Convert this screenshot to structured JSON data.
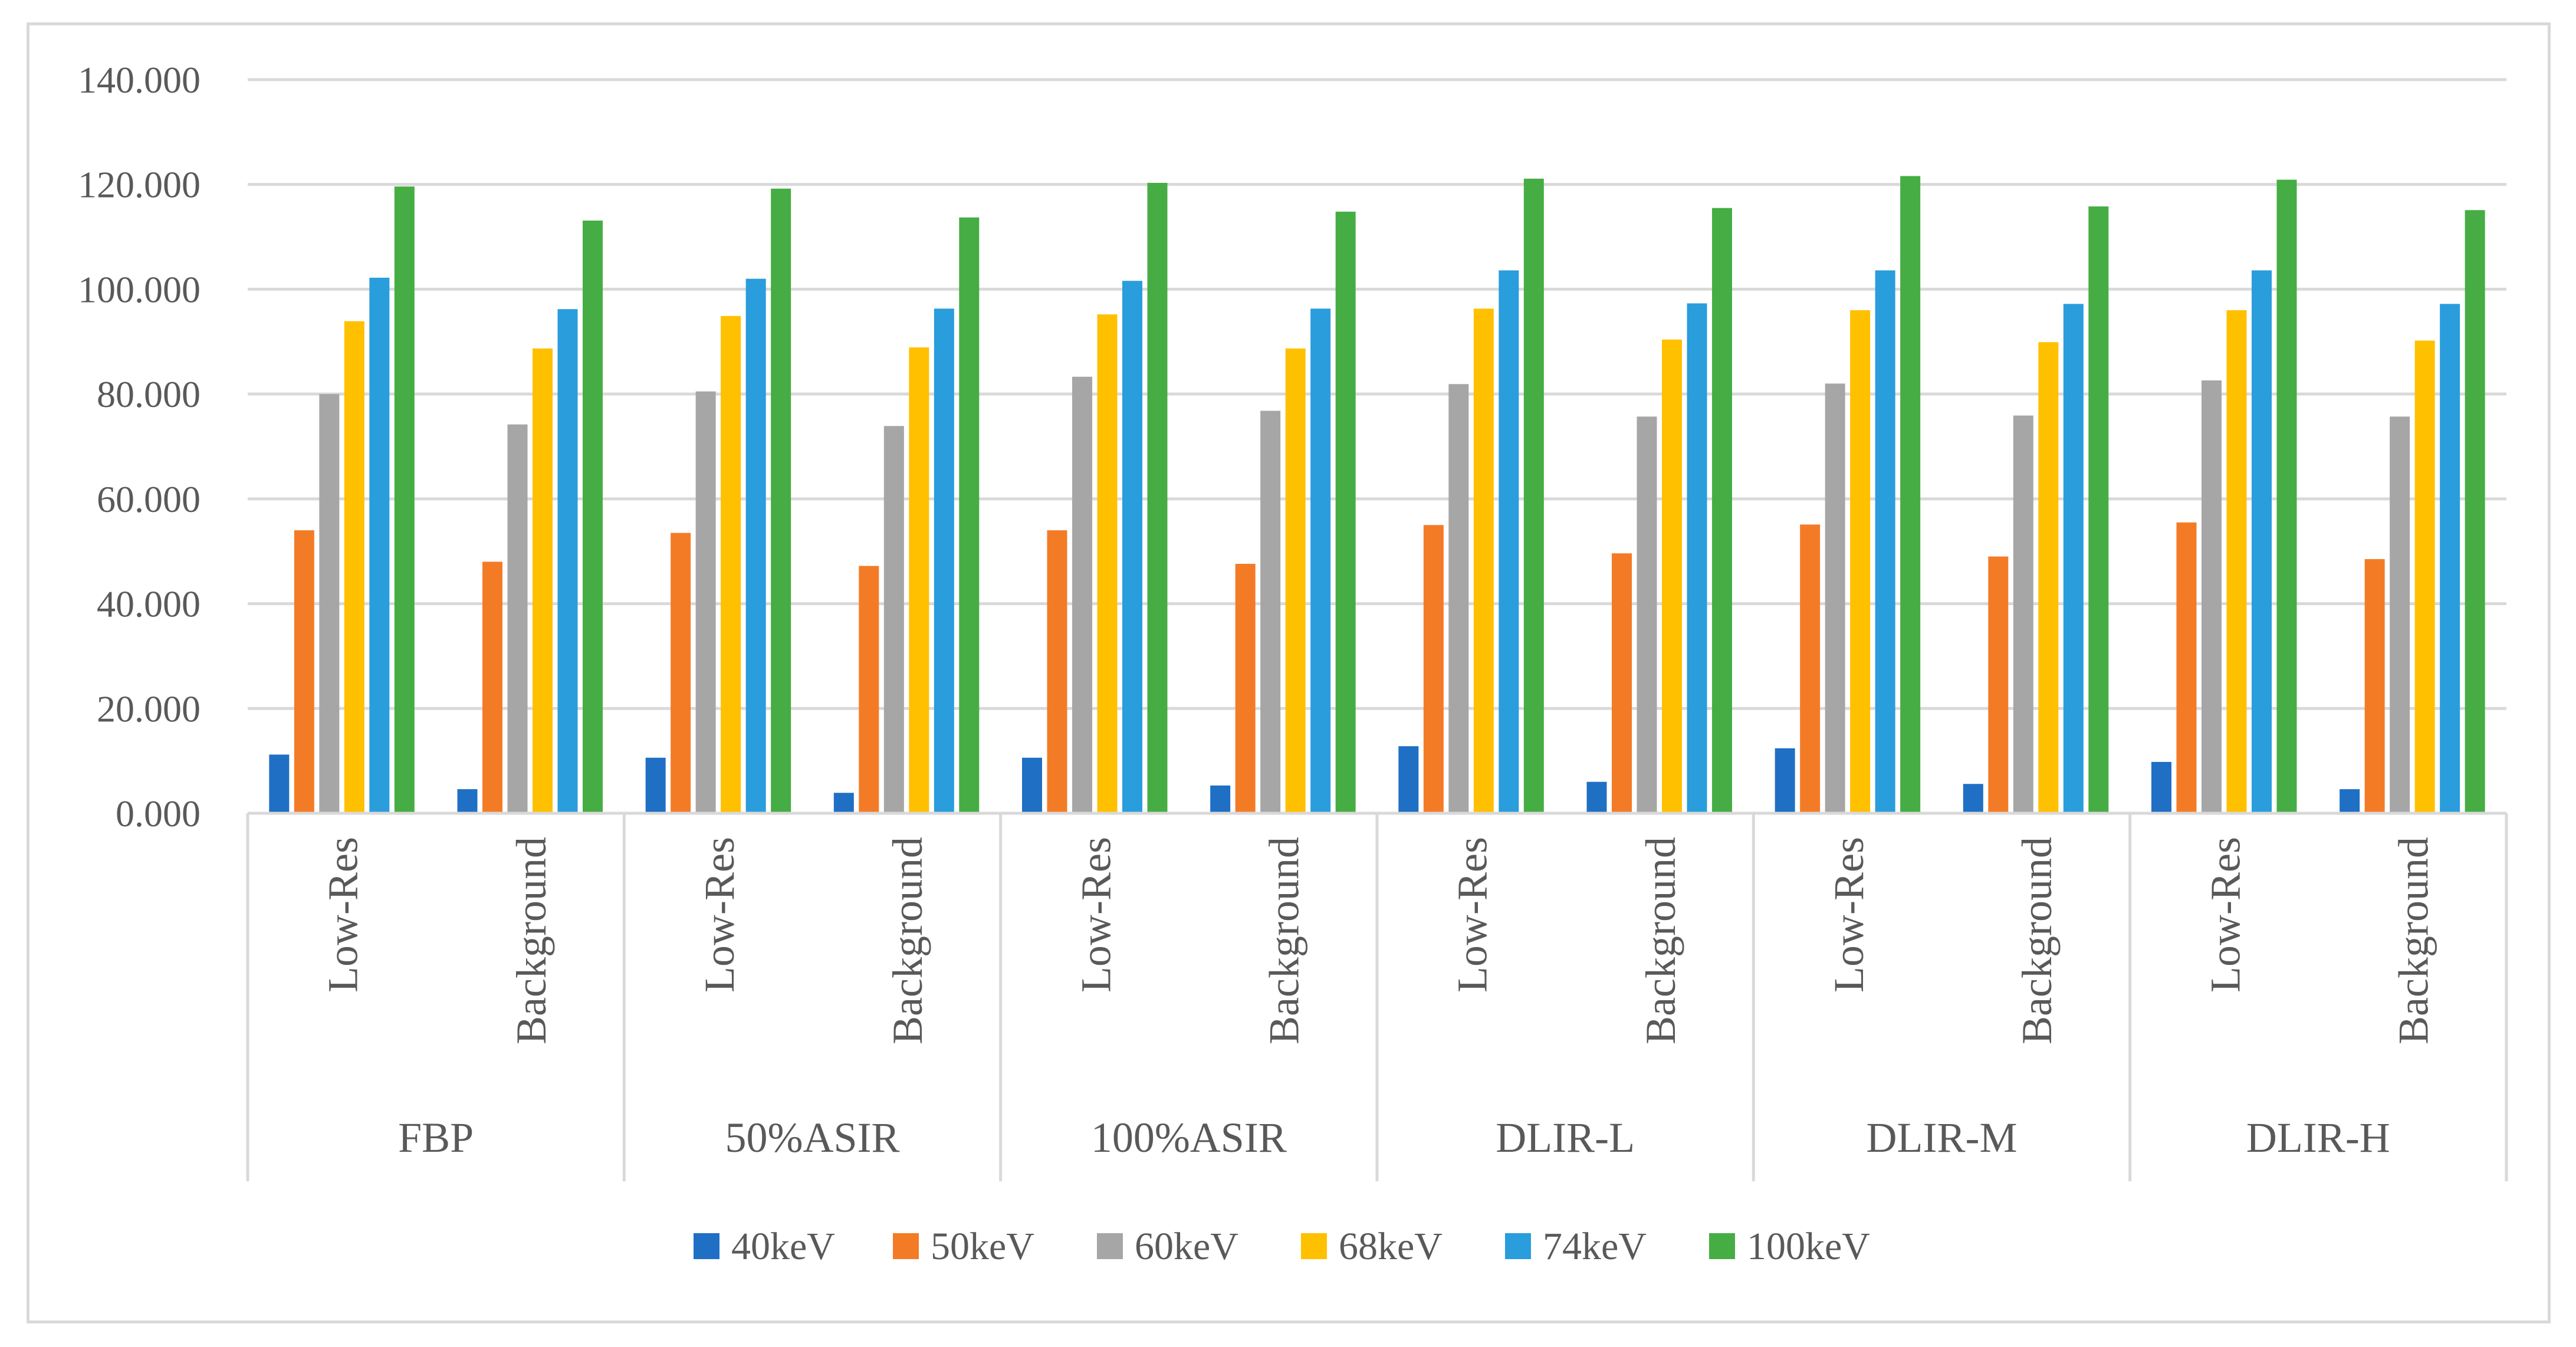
{
  "chart_data": {
    "type": "bar",
    "title": "",
    "xlabel": "",
    "ylabel": "",
    "ylim": [
      0,
      140
    ],
    "y_ticks": [
      {
        "value": 0,
        "label": "0.000"
      },
      {
        "value": 20,
        "label": "20.000"
      },
      {
        "value": 40,
        "label": "40.000"
      },
      {
        "value": 60,
        "label": "60.000"
      },
      {
        "value": 80,
        "label": "80.000"
      },
      {
        "value": 100,
        "label": "100.000"
      },
      {
        "value": 120,
        "label": "120.000"
      },
      {
        "value": 140,
        "label": "140.000"
      }
    ],
    "grid": true,
    "legend_position": "bottom",
    "groups": [
      "FBP",
      "50%ASIR",
      "100%ASIR",
      "DLIR-L",
      "DLIR-M",
      "DLIR-H"
    ],
    "subcategories": [
      "Low-Res",
      "Background"
    ],
    "categories": [
      "FBP Low-Res",
      "FBP Background",
      "50%ASIR Low-Res",
      "50%ASIR Background",
      "100%ASIR Low-Res",
      "100%ASIR Background",
      "DLIR-L Low-Res",
      "DLIR-L Background",
      "DLIR-M Low-Res",
      "DLIR-M Background",
      "DLIR-H Low-Res",
      "DLIR-H Background"
    ],
    "series": [
      {
        "name": "40keV",
        "color": "#1f6fc5",
        "values": [
          11.2,
          4.6,
          10.6,
          3.9,
          10.6,
          5.3,
          12.8,
          6.0,
          12.4,
          5.6,
          9.8,
          4.6
        ]
      },
      {
        "name": "50keV",
        "color": "#f47b26",
        "values": [
          54.0,
          48.0,
          53.5,
          47.2,
          54.0,
          47.6,
          55.0,
          49.6,
          55.1,
          49.0,
          55.5,
          48.5
        ]
      },
      {
        "name": "60keV",
        "color": "#a6a6a6",
        "values": [
          80.0,
          74.2,
          80.5,
          73.9,
          83.3,
          76.8,
          81.9,
          75.7,
          82.0,
          75.9,
          82.6,
          75.7
        ]
      },
      {
        "name": "68keV",
        "color": "#ffc000",
        "values": [
          93.9,
          88.7,
          94.9,
          88.9,
          95.2,
          88.7,
          96.3,
          90.4,
          96.0,
          89.9,
          96.0,
          90.2
        ]
      },
      {
        "name": "74keV",
        "color": "#2a9ddc",
        "values": [
          102.2,
          96.2,
          102.0,
          96.3,
          101.6,
          96.3,
          103.6,
          97.3,
          103.6,
          97.2,
          103.6,
          97.2
        ]
      },
      {
        "name": "100keV",
        "color": "#46ad44",
        "values": [
          119.6,
          113.1,
          119.2,
          113.7,
          120.3,
          114.8,
          121.1,
          115.5,
          121.6,
          115.8,
          120.9,
          115.1
        ]
      }
    ]
  }
}
